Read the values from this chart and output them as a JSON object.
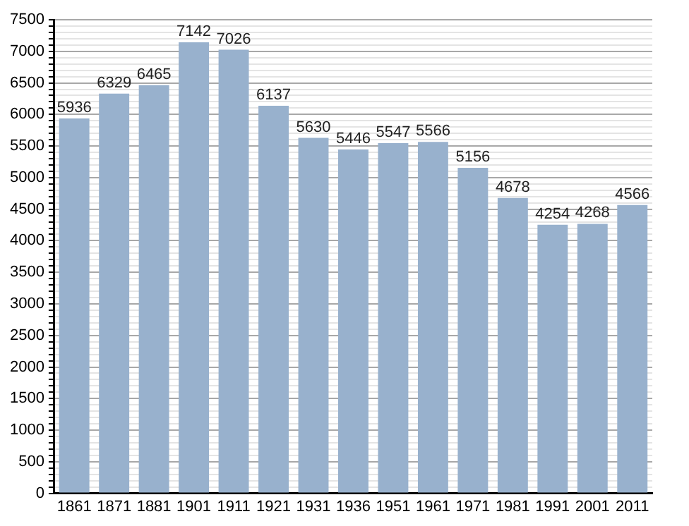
{
  "chart_data": {
    "type": "bar",
    "categories": [
      "1861",
      "1871",
      "1881",
      "1901",
      "1911",
      "1921",
      "1931",
      "1936",
      "1951",
      "1961",
      "1971",
      "1981",
      "1991",
      "2001",
      "2011"
    ],
    "values": [
      5936,
      6329,
      6465,
      7142,
      7026,
      6137,
      5630,
      5446,
      5547,
      5566,
      5156,
      4678,
      4254,
      4268,
      4566
    ],
    "color": "#98b1cd",
    "data_labels": true,
    "grid": "y",
    "ylim": [
      0,
      7500
    ],
    "yticks": [
      0,
      {
        "value": 100,
        "label": null
      },
      {
        "value": 200,
        "label": null
      },
      {
        "value": 300,
        "label": null
      },
      {
        "value": 400,
        "label": null
      },
      500,
      {
        "value": 600,
        "label": null
      },
      {
        "value": 700,
        "label": null
      },
      {
        "value": 800,
        "label": null
      },
      {
        "value": 900,
        "label": null
      },
      1000,
      {
        "value": 1100,
        "label": null
      },
      {
        "value": 1200,
        "label": null
      },
      {
        "value": 1300,
        "label": null
      },
      {
        "value": 1400,
        "label": null
      },
      1500,
      {
        "value": 1600,
        "label": null
      },
      {
        "value": 1700,
        "label": null
      },
      {
        "value": 1800,
        "label": null
      },
      {
        "value": 1900,
        "label": null
      },
      2000,
      {
        "value": 2100,
        "label": null
      },
      {
        "value": 2200,
        "label": null
      },
      {
        "value": 2300,
        "label": null
      },
      {
        "value": 2400,
        "label": null
      },
      2500,
      {
        "value": 2600,
        "label": null
      },
      {
        "value": 2700,
        "label": null
      },
      {
        "value": 2800,
        "label": null
      },
      {
        "value": 2900,
        "label": null
      },
      3000,
      {
        "value": 3100,
        "label": null
      },
      {
        "value": 3200,
        "label": null
      },
      {
        "value": 3300,
        "label": null
      },
      {
        "value": 3400,
        "label": null
      },
      3500,
      {
        "value": 3600,
        "label": null
      },
      {
        "value": 3700,
        "label": null
      },
      {
        "value": 3800,
        "label": null
      },
      {
        "value": 3900,
        "label": null
      },
      4000,
      {
        "value": 4100,
        "label": null
      },
      {
        "value": 4200,
        "label": null
      },
      {
        "value": 4300,
        "label": null
      },
      {
        "value": 4400,
        "label": null
      },
      4500,
      {
        "value": 4600,
        "label": null
      },
      {
        "value": 4700,
        "label": null
      },
      {
        "value": 4800,
        "label": null
      },
      {
        "value": 4900,
        "label": null
      },
      5000,
      {
        "value": 5100,
        "label": null
      },
      {
        "value": 5200,
        "label": null
      },
      {
        "value": 5300,
        "label": null
      },
      {
        "value": 5400,
        "label": null
      },
      5500,
      {
        "value": 5600,
        "label": null
      },
      {
        "value": 5700,
        "label": null
      },
      {
        "value": 5800,
        "label": null
      },
      {
        "value": 5900,
        "label": null
      },
      6000,
      {
        "value": 6100,
        "label": null
      },
      {
        "value": 6200,
        "label": null
      },
      {
        "value": 6300,
        "label": null
      },
      {
        "value": 6400,
        "label": null
      },
      6500,
      {
        "value": 6600,
        "label": null
      },
      {
        "value": 6700,
        "label": null
      },
      {
        "value": 6800,
        "label": null
      },
      {
        "value": 6900,
        "label": null
      },
      7000,
      {
        "value": 7100,
        "label": null
      },
      {
        "value": 7200,
        "label": null
      },
      {
        "value": 7300,
        "label": null
      },
      {
        "value": 7400,
        "label": null
      },
      7500
    ]
  }
}
